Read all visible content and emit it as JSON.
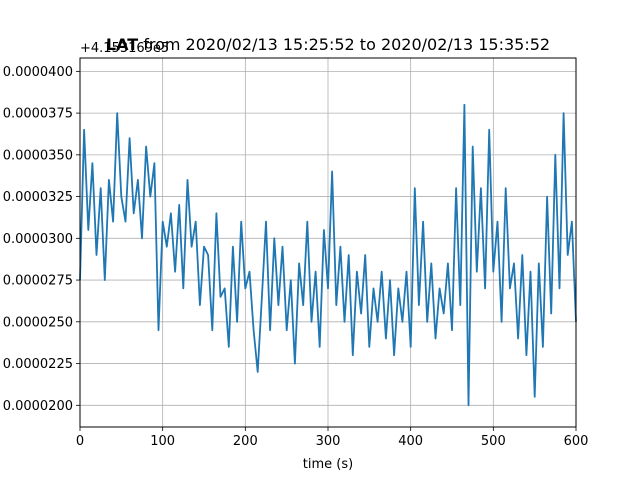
{
  "chart_data": {
    "type": "line",
    "title_bold": "LAT",
    "title_rest": " from 2020/02/13 15:25:52 to 2020/02/13 15:35:52",
    "xlabel": "time (s)",
    "ylabel": "",
    "offset_label": "+4.153169e5",
    "xlim": [
      0,
      600
    ],
    "ylim": [
      1.87e-05,
      4.08e-05
    ],
    "x_ticks": [
      0,
      100,
      200,
      300,
      400,
      500,
      600
    ],
    "x_tick_labels": [
      "0",
      "100",
      "200",
      "300",
      "400",
      "500",
      "600"
    ],
    "y_ticks": [
      2e-05,
      2.25e-05,
      2.5e-05,
      2.75e-05,
      3e-05,
      3.25e-05,
      3.5e-05,
      3.75e-05,
      4e-05
    ],
    "y_tick_labels": [
      "0.0000200",
      "0.0000225",
      "0.0000250",
      "0.0000275",
      "0.0000300",
      "0.0000325",
      "0.0000350",
      "0.0000375",
      "0.0000400"
    ],
    "grid": true,
    "line_color": "#1f77b4",
    "series": [
      {
        "x": [
          0,
          5,
          10,
          15,
          20,
          25,
          30,
          35,
          40,
          45,
          50,
          55,
          60,
          65,
          70,
          75,
          80,
          85,
          90,
          95,
          100,
          105,
          110,
          115,
          120,
          125,
          130,
          135,
          140,
          145,
          150,
          155,
          160,
          165,
          170,
          175,
          180,
          185,
          190,
          195,
          200,
          205,
          210,
          215,
          220,
          225,
          230,
          235,
          240,
          245,
          250,
          255,
          260,
          265,
          270,
          275,
          280,
          285,
          290,
          295,
          300,
          305,
          310,
          315,
          320,
          325,
          330,
          335,
          340,
          345,
          350,
          355,
          360,
          365,
          370,
          375,
          380,
          385,
          390,
          395,
          400,
          405,
          410,
          415,
          420,
          425,
          430,
          435,
          440,
          445,
          450,
          455,
          460,
          465,
          470,
          475,
          480,
          485,
          490,
          495,
          500,
          505,
          510,
          515,
          520,
          525,
          530,
          535,
          540,
          545,
          550,
          555,
          560,
          565,
          570,
          575,
          580,
          585,
          590,
          595,
          600
        ],
        "values": [
          2.75e-05,
          3.65e-05,
          3.05e-05,
          3.45e-05,
          2.9e-05,
          3.3e-05,
          2.75e-05,
          3.35e-05,
          3.1e-05,
          3.75e-05,
          3.25e-05,
          3.1e-05,
          3.6e-05,
          3.15e-05,
          3.35e-05,
          3e-05,
          3.55e-05,
          3.25e-05,
          3.45e-05,
          2.45e-05,
          3.1e-05,
          2.95e-05,
          3.15e-05,
          2.8e-05,
          3.2e-05,
          2.7e-05,
          3.35e-05,
          2.95e-05,
          3.1e-05,
          2.6e-05,
          2.95e-05,
          2.9e-05,
          2.45e-05,
          3.15e-05,
          2.65e-05,
          2.7e-05,
          2.35e-05,
          2.95e-05,
          2.5e-05,
          3.1e-05,
          2.7e-05,
          2.8e-05,
          2.45e-05,
          2.2e-05,
          2.65e-05,
          3.1e-05,
          2.45e-05,
          3e-05,
          2.6e-05,
          2.95e-05,
          2.45e-05,
          2.75e-05,
          2.25e-05,
          2.85e-05,
          2.6e-05,
          3.1e-05,
          2.5e-05,
          2.8e-05,
          2.35e-05,
          3.05e-05,
          2.7e-05,
          3.4e-05,
          2.6e-05,
          2.95e-05,
          2.5e-05,
          2.9e-05,
          2.3e-05,
          2.8e-05,
          2.55e-05,
          2.9e-05,
          2.35e-05,
          2.7e-05,
          2.5e-05,
          2.8e-05,
          2.4e-05,
          2.75e-05,
          2.3e-05,
          2.7e-05,
          2.5e-05,
          2.8e-05,
          2.35e-05,
          3.3e-05,
          2.6e-05,
          3.1e-05,
          2.5e-05,
          2.85e-05,
          2.4e-05,
          2.7e-05,
          2.55e-05,
          2.85e-05,
          2.45e-05,
          3.3e-05,
          2.6e-05,
          3.8e-05,
          2e-05,
          3.55e-05,
          2.8e-05,
          3.3e-05,
          2.7e-05,
          3.65e-05,
          2.8e-05,
          3.1e-05,
          2.5e-05,
          3.3e-05,
          2.7e-05,
          2.85e-05,
          2.4e-05,
          2.9e-05,
          2.3e-05,
          2.8e-05,
          2.05e-05,
          2.85e-05,
          2.35e-05,
          3.25e-05,
          2.55e-05,
          3.5e-05,
          2.7e-05,
          3.75e-05,
          2.9e-05,
          3.1e-05,
          2.5e-05
        ]
      }
    ]
  }
}
